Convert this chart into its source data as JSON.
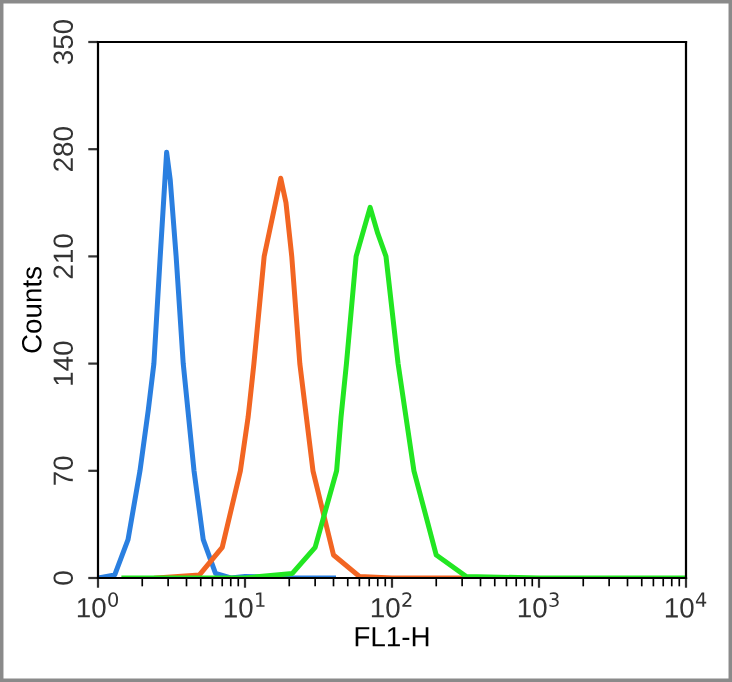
{
  "chart_data": {
    "type": "line",
    "xlabel": "FL1-H",
    "ylabel": "Counts",
    "log": "x",
    "xlim": [
      1,
      10000
    ],
    "xticks": [
      {
        "value": 1,
        "label": "10$^{0}$"
      },
      {
        "value": 10,
        "label": "10$^{1}$"
      },
      {
        "value": 100,
        "label": "10$^{2}$"
      },
      {
        "value": 1000,
        "label": "10$^{3}$"
      },
      {
        "value": 10000,
        "label": "10$^{4}$"
      }
    ],
    "ylim": [
      0,
      350
    ],
    "yticks": [
      0,
      70,
      140,
      210,
      280,
      350
    ],
    "grid": false,
    "legend": false,
    "series": [
      {
        "color": "#2a7fe0",
        "x": [
          1,
          1.3,
          1.6,
          1.93,
          2.2,
          2.4,
          2.65,
          2.93,
          3.1,
          3.4,
          3.8,
          4.5,
          5.2,
          6.3,
          8,
          10,
          20,
          40
        ],
        "values": [
          0,
          2,
          25,
          70,
          110,
          140,
          210,
          278,
          260,
          210,
          140,
          70,
          25,
          3,
          0,
          1,
          0,
          0
        ]
      },
      {
        "color": "#f26522",
        "x": [
          2.5,
          4.9,
          7,
          9.3,
          10.5,
          11.5,
          13.5,
          17.5,
          19,
          20.8,
          23.6,
          29,
          40,
          60,
          100,
          300
        ],
        "values": [
          0,
          2,
          20,
          70,
          105,
          140,
          210,
          261,
          245,
          210,
          140,
          70,
          15,
          1,
          0,
          0
        ]
      },
      {
        "color": "#22e622",
        "x": [
          1.5,
          10,
          21,
          30,
          42,
          45,
          49,
          57,
          71,
          80,
          91,
          110,
          141,
          200,
          320,
          1000,
          10000
        ],
        "values": [
          0,
          0,
          3,
          20,
          70,
          105,
          140,
          210,
          242,
          225,
          210,
          140,
          70,
          15,
          1,
          0,
          0
        ]
      }
    ]
  }
}
